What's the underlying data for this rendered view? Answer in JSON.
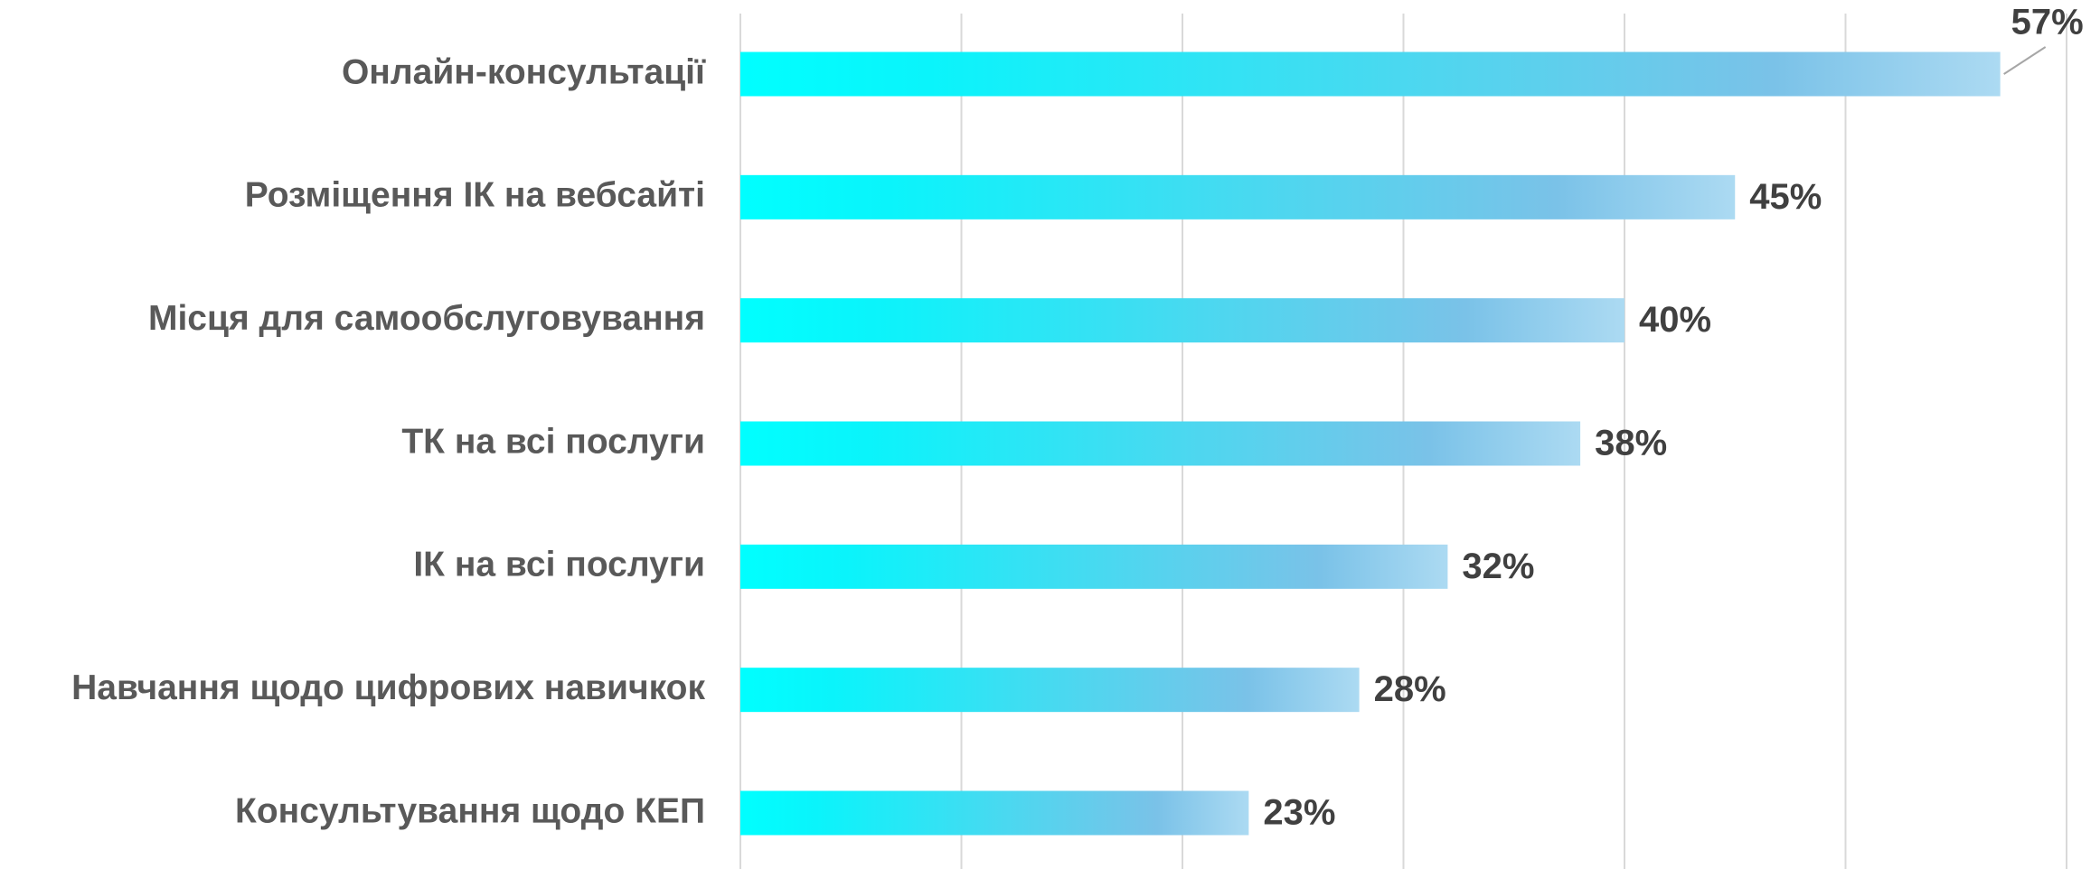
{
  "chart_data": {
    "type": "barh",
    "categories": [
      "Онлайн-консультації",
      "Розміщення ІК на вебсайті",
      "Місця для самообслуговування",
      "ТК на всі послуги",
      "ІК на всі послуги",
      "Навчання щодо цифрових навичкок",
      "Консультування щодо КЕП"
    ],
    "values": [
      57,
      45,
      40,
      38,
      32,
      28,
      23
    ],
    "value_labels": [
      "57%",
      "45%",
      "40%",
      "38%",
      "32%",
      "28%",
      "23%"
    ],
    "color": "#00ffff",
    "xlim": [
      0,
      60
    ],
    "xticks": [
      0,
      10,
      20,
      30,
      40,
      50,
      60
    ],
    "grid": true
  }
}
